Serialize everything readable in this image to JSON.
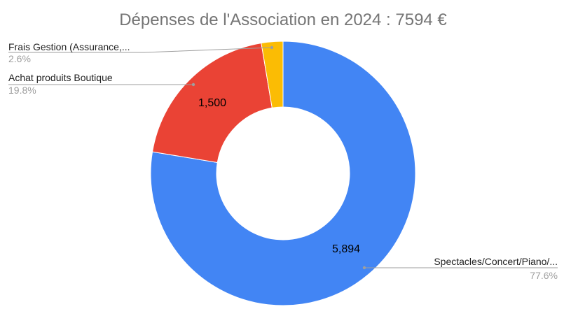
{
  "chart_data": {
    "type": "pie",
    "donut": true,
    "title": "Dépenses de l'Association en 2024 : 7594 €",
    "slices": [
      {
        "name": "Spectacles/Concert/Piano/...",
        "value": 5894,
        "value_label": "5,894",
        "percent_label": "77.6%",
        "color": "#4285f4"
      },
      {
        "name": "Achat produits Boutique",
        "value": 1500,
        "value_label": "1,500",
        "percent_label": "19.8%",
        "color": "#ea4335"
      },
      {
        "name": "Frais Gestion (Assurance,...",
        "value": 200,
        "value_label": "",
        "percent_label": "2.6%",
        "color": "#fbbc04"
      }
    ],
    "legend": "none"
  }
}
